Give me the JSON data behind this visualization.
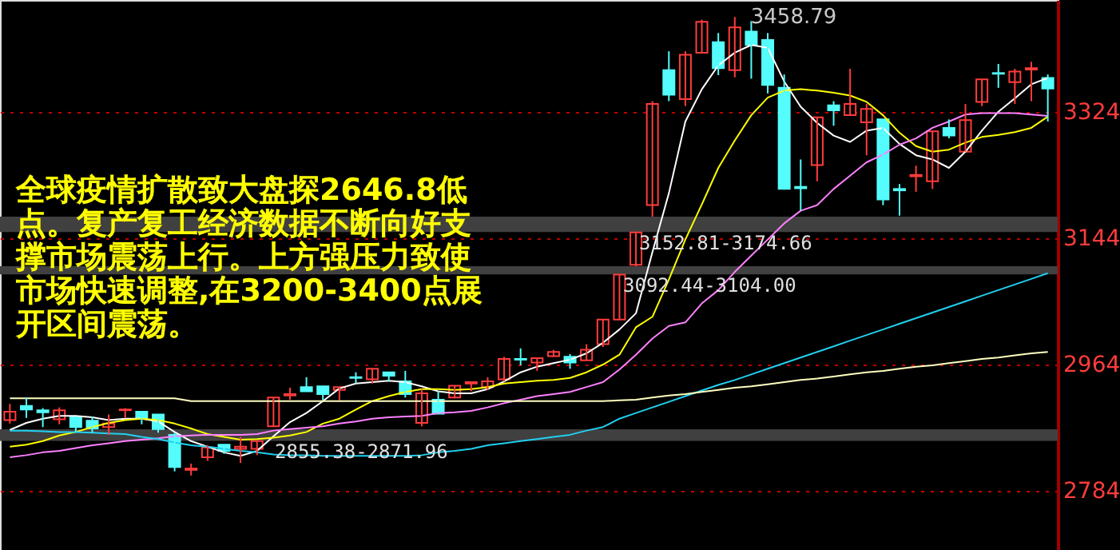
{
  "chart_data": {
    "type": "candlestick",
    "categories": [
      null,
      null,
      null,
      null,
      null,
      null,
      null,
      null,
      null,
      null,
      null,
      null,
      null,
      null,
      null,
      null,
      null,
      null,
      null,
      null,
      null,
      null,
      null,
      null,
      null,
      null,
      null,
      null,
      null,
      null,
      null,
      null,
      null,
      null,
      null,
      null,
      null,
      null,
      null,
      null,
      null,
      null,
      null,
      null,
      null,
      null,
      null,
      null,
      null,
      null,
      null,
      null,
      null,
      null,
      null,
      null,
      null,
      null,
      null,
      null,
      null,
      null,
      null,
      null
    ],
    "ohlc": [
      [
        2885,
        2908,
        2880,
        2897
      ],
      [
        2905,
        2917,
        2888,
        2900
      ],
      [
        2899,
        2902,
        2875,
        2896
      ],
      [
        2886,
        2903,
        2879,
        2899
      ],
      [
        2890,
        2890,
        2868,
        2875
      ],
      [
        2884,
        2890,
        2867,
        2873
      ],
      [
        2875,
        2893,
        2864,
        2880
      ],
      [
        2899,
        2902,
        2888,
        2900
      ],
      [
        2897,
        2897,
        2879,
        2887
      ],
      [
        2893,
        2893,
        2867,
        2872
      ],
      [
        2864,
        2867,
        2812,
        2818
      ],
      [
        2814,
        2823,
        2806,
        2816
      ],
      [
        2832,
        2849,
        2827,
        2846
      ],
      [
        2850,
        2850,
        2837,
        2841
      ],
      [
        2844,
        2861,
        2824,
        2847
      ],
      [
        2844,
        2855,
        2835,
        2855
      ],
      [
        2876,
        2917,
        2875,
        2917
      ],
      [
        2920,
        2931,
        2914,
        2922
      ],
      [
        2932,
        2946,
        2926,
        2926
      ],
      [
        2933,
        2933,
        2913,
        2922
      ],
      [
        2928,
        2932,
        2913,
        2932
      ],
      [
        2946,
        2953,
        2937,
        2945
      ],
      [
        2943,
        2958,
        2937,
        2958
      ],
      [
        2953,
        2953,
        2940,
        2948
      ],
      [
        2940,
        2955,
        2917,
        2922
      ],
      [
        2881,
        2929,
        2876,
        2923
      ],
      [
        2914,
        2926,
        2894,
        2894
      ],
      [
        2917,
        2934,
        2916,
        2934
      ],
      [
        2937,
        2939,
        2926,
        2939
      ],
      [
        2932,
        2946,
        2928,
        2940
      ],
      [
        2943,
        2975,
        2940,
        2972
      ],
      [
        2972,
        2987,
        2963,
        2971
      ],
      [
        2967,
        2973,
        2955,
        2973
      ],
      [
        2976,
        2985,
        2975,
        2982
      ],
      [
        2975,
        2979,
        2958,
        2967
      ],
      [
        2970,
        2993,
        2970,
        2985
      ],
      [
        2993,
        3028,
        2989,
        3028
      ],
      [
        3028,
        3092.44,
        3028,
        3092
      ],
      [
        3106,
        3152.81,
        3104,
        3152
      ],
      [
        3191,
        3339,
        3174.66,
        3335
      ],
      [
        3383,
        3410,
        3339,
        3348
      ],
      [
        3342,
        3410,
        3332,
        3405
      ],
      [
        3408,
        3455,
        3408,
        3452
      ],
      [
        3423,
        3436,
        3376,
        3386
      ],
      [
        3383,
        3458.79,
        3373,
        3444
      ],
      [
        3438,
        3453,
        3371,
        3419
      ],
      [
        3426,
        3436,
        3350,
        3362
      ],
      [
        3358,
        3377,
        3214,
        3214
      ],
      [
        3217,
        3256,
        3183,
        3215
      ],
      [
        3248,
        3316,
        3225,
        3316
      ],
      [
        3333,
        3339,
        3304,
        3326
      ],
      [
        3319,
        3385,
        3319,
        3335
      ],
      [
        3309,
        3335,
        3262,
        3328
      ],
      [
        3313,
        3313,
        3191,
        3199
      ],
      [
        3214,
        3221,
        3176,
        3212
      ],
      [
        3232,
        3247,
        3210,
        3234
      ],
      [
        3225,
        3296,
        3214,
        3296
      ],
      [
        3301,
        3313,
        3286,
        3290
      ],
      [
        3267,
        3335,
        3267,
        3312
      ],
      [
        3338,
        3370,
        3332,
        3370
      ],
      [
        3379,
        3392,
        3358,
        3378
      ],
      [
        3366,
        3385,
        3335,
        3381
      ],
      [
        3384,
        3395,
        3339,
        3386
      ],
      [
        3372,
        3377,
        3310,
        3357
      ]
    ],
    "colors": [
      "#ff3c3c",
      "#54fcfc",
      "#54fcfc",
      "#ff3c3c",
      "#54fcfc",
      "#54fcfc",
      "#ff3c3c",
      "#ff3c3c",
      "#54fcfc",
      "#54fcfc",
      "#54fcfc",
      "#ff3c3c",
      "#ff3c3c",
      "#54fcfc",
      "#ff3c3c",
      "#ff3c3c",
      "#ff3c3c",
      "#ff3c3c",
      "#54fcfc",
      "#54fcfc",
      "#ff3c3c",
      "#54fcfc",
      "#ff3c3c",
      "#54fcfc",
      "#54fcfc",
      "#ff3c3c",
      "#54fcfc",
      "#ff3c3c",
      "#ff3c3c",
      "#ff3c3c",
      "#ff3c3c",
      "#54fcfc",
      "#ff3c3c",
      "#ff3c3c",
      "#54fcfc",
      "#ff3c3c",
      "#ff3c3c",
      "#ff3c3c",
      "#ff3c3c",
      "#ff3c3c",
      "#54fcfc",
      "#ff3c3c",
      "#ff3c3c",
      "#54fcfc",
      "#ff3c3c",
      "#54fcfc",
      "#54fcfc",
      "#54fcfc",
      "#54fcfc",
      "#ff3c3c",
      "#54fcfc",
      "#ff3c3c",
      "#ff3c3c",
      "#54fcfc",
      "#54fcfc",
      "#ff3c3c",
      "#ff3c3c",
      "#54fcfc",
      "#ff3c3c",
      "#ff3c3c",
      "#54fcfc",
      "#ff3c3c",
      "#ff3c3c",
      "#54fcfc"
    ],
    "series": [
      {
        "type": "line",
        "color": "#ffffc0",
        "values": [
          2916,
          2916,
          2916,
          2916,
          2916,
          2916,
          2916,
          2916,
          2916,
          2916,
          2916,
          2912,
          2912,
          2912,
          2912,
          2912,
          2912,
          2912,
          2912,
          2912,
          2912,
          2912,
          2912,
          2912,
          2912,
          2912,
          2912,
          2912,
          2912,
          2912,
          2912,
          2912,
          2912,
          2912,
          2912,
          2912,
          2912,
          2913,
          2914,
          2917,
          2920,
          2922,
          2925,
          2928,
          2931,
          2933,
          2936,
          2939,
          2942,
          2944,
          2947,
          2950,
          2953,
          2955,
          2958,
          2961,
          2963,
          2966,
          2969,
          2972,
          2974,
          2977,
          2980,
          2982
        ]
      },
      {
        "type": "line",
        "color": "#20d0f0",
        "values": [
          2870,
          2870,
          2869,
          2868,
          2868,
          2867,
          2866,
          2865,
          2861,
          2858,
          2853,
          2849,
          2847,
          2844,
          2841,
          2839,
          2836,
          2835,
          2835,
          2834,
          2834,
          2834,
          2834,
          2834,
          2834,
          2835,
          2839,
          2841,
          2844,
          2849,
          2852,
          2855,
          2858,
          2861,
          2864,
          2870,
          2875,
          2887,
          2895,
          2903,
          2911,
          2919,
          2927,
          2935,
          2942,
          2950,
          2958,
          2966,
          2974,
          2982,
          2990,
          2998,
          3006,
          3014,
          3022,
          3030,
          3038,
          3046,
          3054,
          3062,
          3070,
          3078,
          3086,
          3094
        ]
      },
      {
        "type": "line",
        "color": "#ff80ff",
        "values": [
          2832,
          2835,
          2839,
          2841,
          2845,
          2849,
          2852,
          2855,
          2857,
          2859,
          2862,
          2863,
          2864,
          2864,
          2864,
          2865,
          2870,
          2872,
          2874,
          2876,
          2880,
          2883,
          2887,
          2889,
          2890,
          2891,
          2895,
          2896,
          2898,
          2903,
          2909,
          2914,
          2919,
          2922,
          2925,
          2932,
          2939,
          2957,
          2978,
          3001,
          3019,
          3024,
          3051,
          3070,
          3096,
          3119,
          3142,
          3165,
          3183,
          3191,
          3214,
          3233,
          3252,
          3263,
          3277,
          3286,
          3301,
          3310,
          3320,
          3322,
          3322,
          3322,
          3320,
          3318
        ]
      },
      {
        "type": "line",
        "color": "#ffff00",
        "values": [
          2847,
          2850,
          2855,
          2863,
          2868,
          2875,
          2881,
          2885,
          2887,
          2885,
          2880,
          2873,
          2865,
          2861,
          2857,
          2858,
          2860,
          2863,
          2868,
          2880,
          2887,
          2900,
          2912,
          2919,
          2925,
          2929,
          2929,
          2928,
          2929,
          2932,
          2937,
          2939,
          2941,
          2942,
          2945,
          2953,
          2964,
          2978,
          3017,
          3032,
          3085,
          3142,
          3192,
          3244,
          3283,
          3319,
          3344,
          3354,
          3356,
          3354,
          3351,
          3347,
          3338,
          3319,
          3294,
          3275,
          3267,
          3270,
          3280,
          3288,
          3291,
          3295,
          3301,
          3317
        ]
      },
      {
        "type": "line",
        "color": "#ffffff",
        "values": [
          2871,
          2881,
          2887,
          2891,
          2891,
          2889,
          2885,
          2887,
          2887,
          2883,
          2868,
          2855,
          2847,
          2839,
          2834,
          2841,
          2862,
          2882,
          2895,
          2912,
          2930,
          2937,
          2939,
          2941,
          2939,
          2933,
          2926,
          2923,
          2923,
          2929,
          2940,
          2953,
          2961,
          2966,
          2971,
          2980,
          2995,
          3014,
          3037,
          3124,
          3208,
          3310,
          3356,
          3390,
          3408,
          3419,
          3415,
          3367,
          3331,
          3308,
          3290,
          3281,
          3297,
          3301,
          3278,
          3262,
          3256,
          3244,
          3267,
          3297,
          3324,
          3343,
          3363,
          3372
        ]
      }
    ],
    "ylim": [
      2700,
      3483
    ],
    "yticks": [
      2784,
      2964,
      3144,
      3324
    ],
    "grid": "y",
    "tick_labels": "y",
    "bands": [
      {
        "axis": "y",
        "from": 3152.81,
        "to": 3174.66,
        "label": "3152.81-3174.66",
        "color": "#404040"
      },
      {
        "axis": "y",
        "from": 3092.44,
        "to": 3104.0,
        "label": "3092.44-3104.00",
        "color": "#404040"
      },
      {
        "axis": "y",
        "from": 2855.38,
        "to": 2871.96,
        "label": "2855.38-2871.96",
        "color": "#404040"
      }
    ],
    "annotations": [
      "3458.79",
      "全球疫情扩散致大盘探2646.8低点。复产复工经济数据不断向好支撑市场震荡上行。上方强压力致使市场快速调整,在3200-3400点展开区间震荡。"
    ]
  }
}
